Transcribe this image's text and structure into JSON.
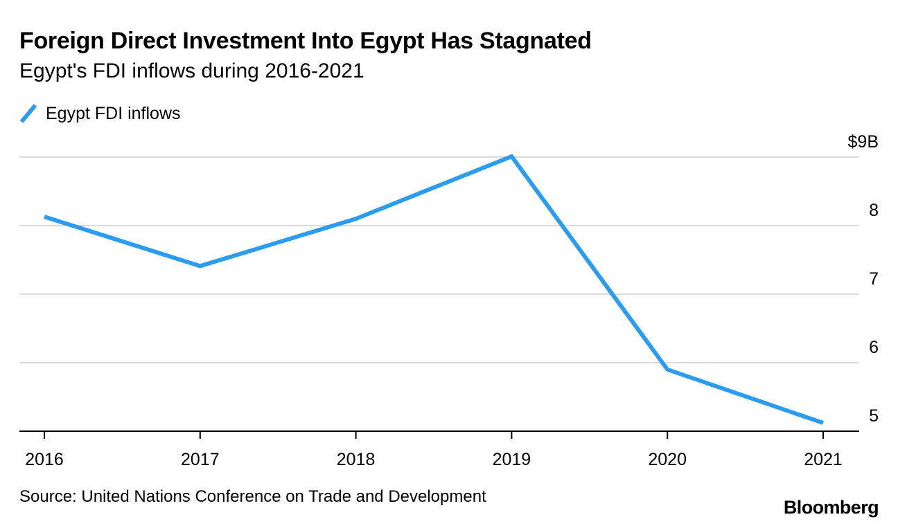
{
  "header": {
    "title": "Foreign Direct Investment Into Egypt Has Stagnated",
    "subtitle": "Egypt's FDI inflows during 2016-2021"
  },
  "footer": {
    "source": "Source: United Nations Conference on Trade and Development",
    "brand": "Bloomberg"
  },
  "colors": {
    "series": "#2b9cf0",
    "grid": "#d9d9d9",
    "axis": "#000000"
  },
  "chart_data": {
    "type": "line",
    "title": "Foreign Direct Investment Into Egypt Has Stagnated",
    "subtitle": "Egypt's FDI inflows during 2016-2021",
    "xlabel": "",
    "ylabel": "",
    "legend_position": "top-left",
    "grid": true,
    "categories": [
      "2016",
      "2017",
      "2018",
      "2019",
      "2020",
      "2021"
    ],
    "series": [
      {
        "name": "Egypt FDI inflows",
        "values": [
          8.13,
          7.41,
          8.1,
          9.01,
          5.9,
          5.12
        ]
      }
    ],
    "ylim": [
      5,
      9
    ],
    "yticks": [
      {
        "value": 9,
        "label": "$9B"
      },
      {
        "value": 8,
        "label": "8"
      },
      {
        "value": 7,
        "label": "7"
      },
      {
        "value": 6,
        "label": "6"
      },
      {
        "value": 5,
        "label": "5"
      }
    ],
    "unit": "billion US dollars"
  }
}
